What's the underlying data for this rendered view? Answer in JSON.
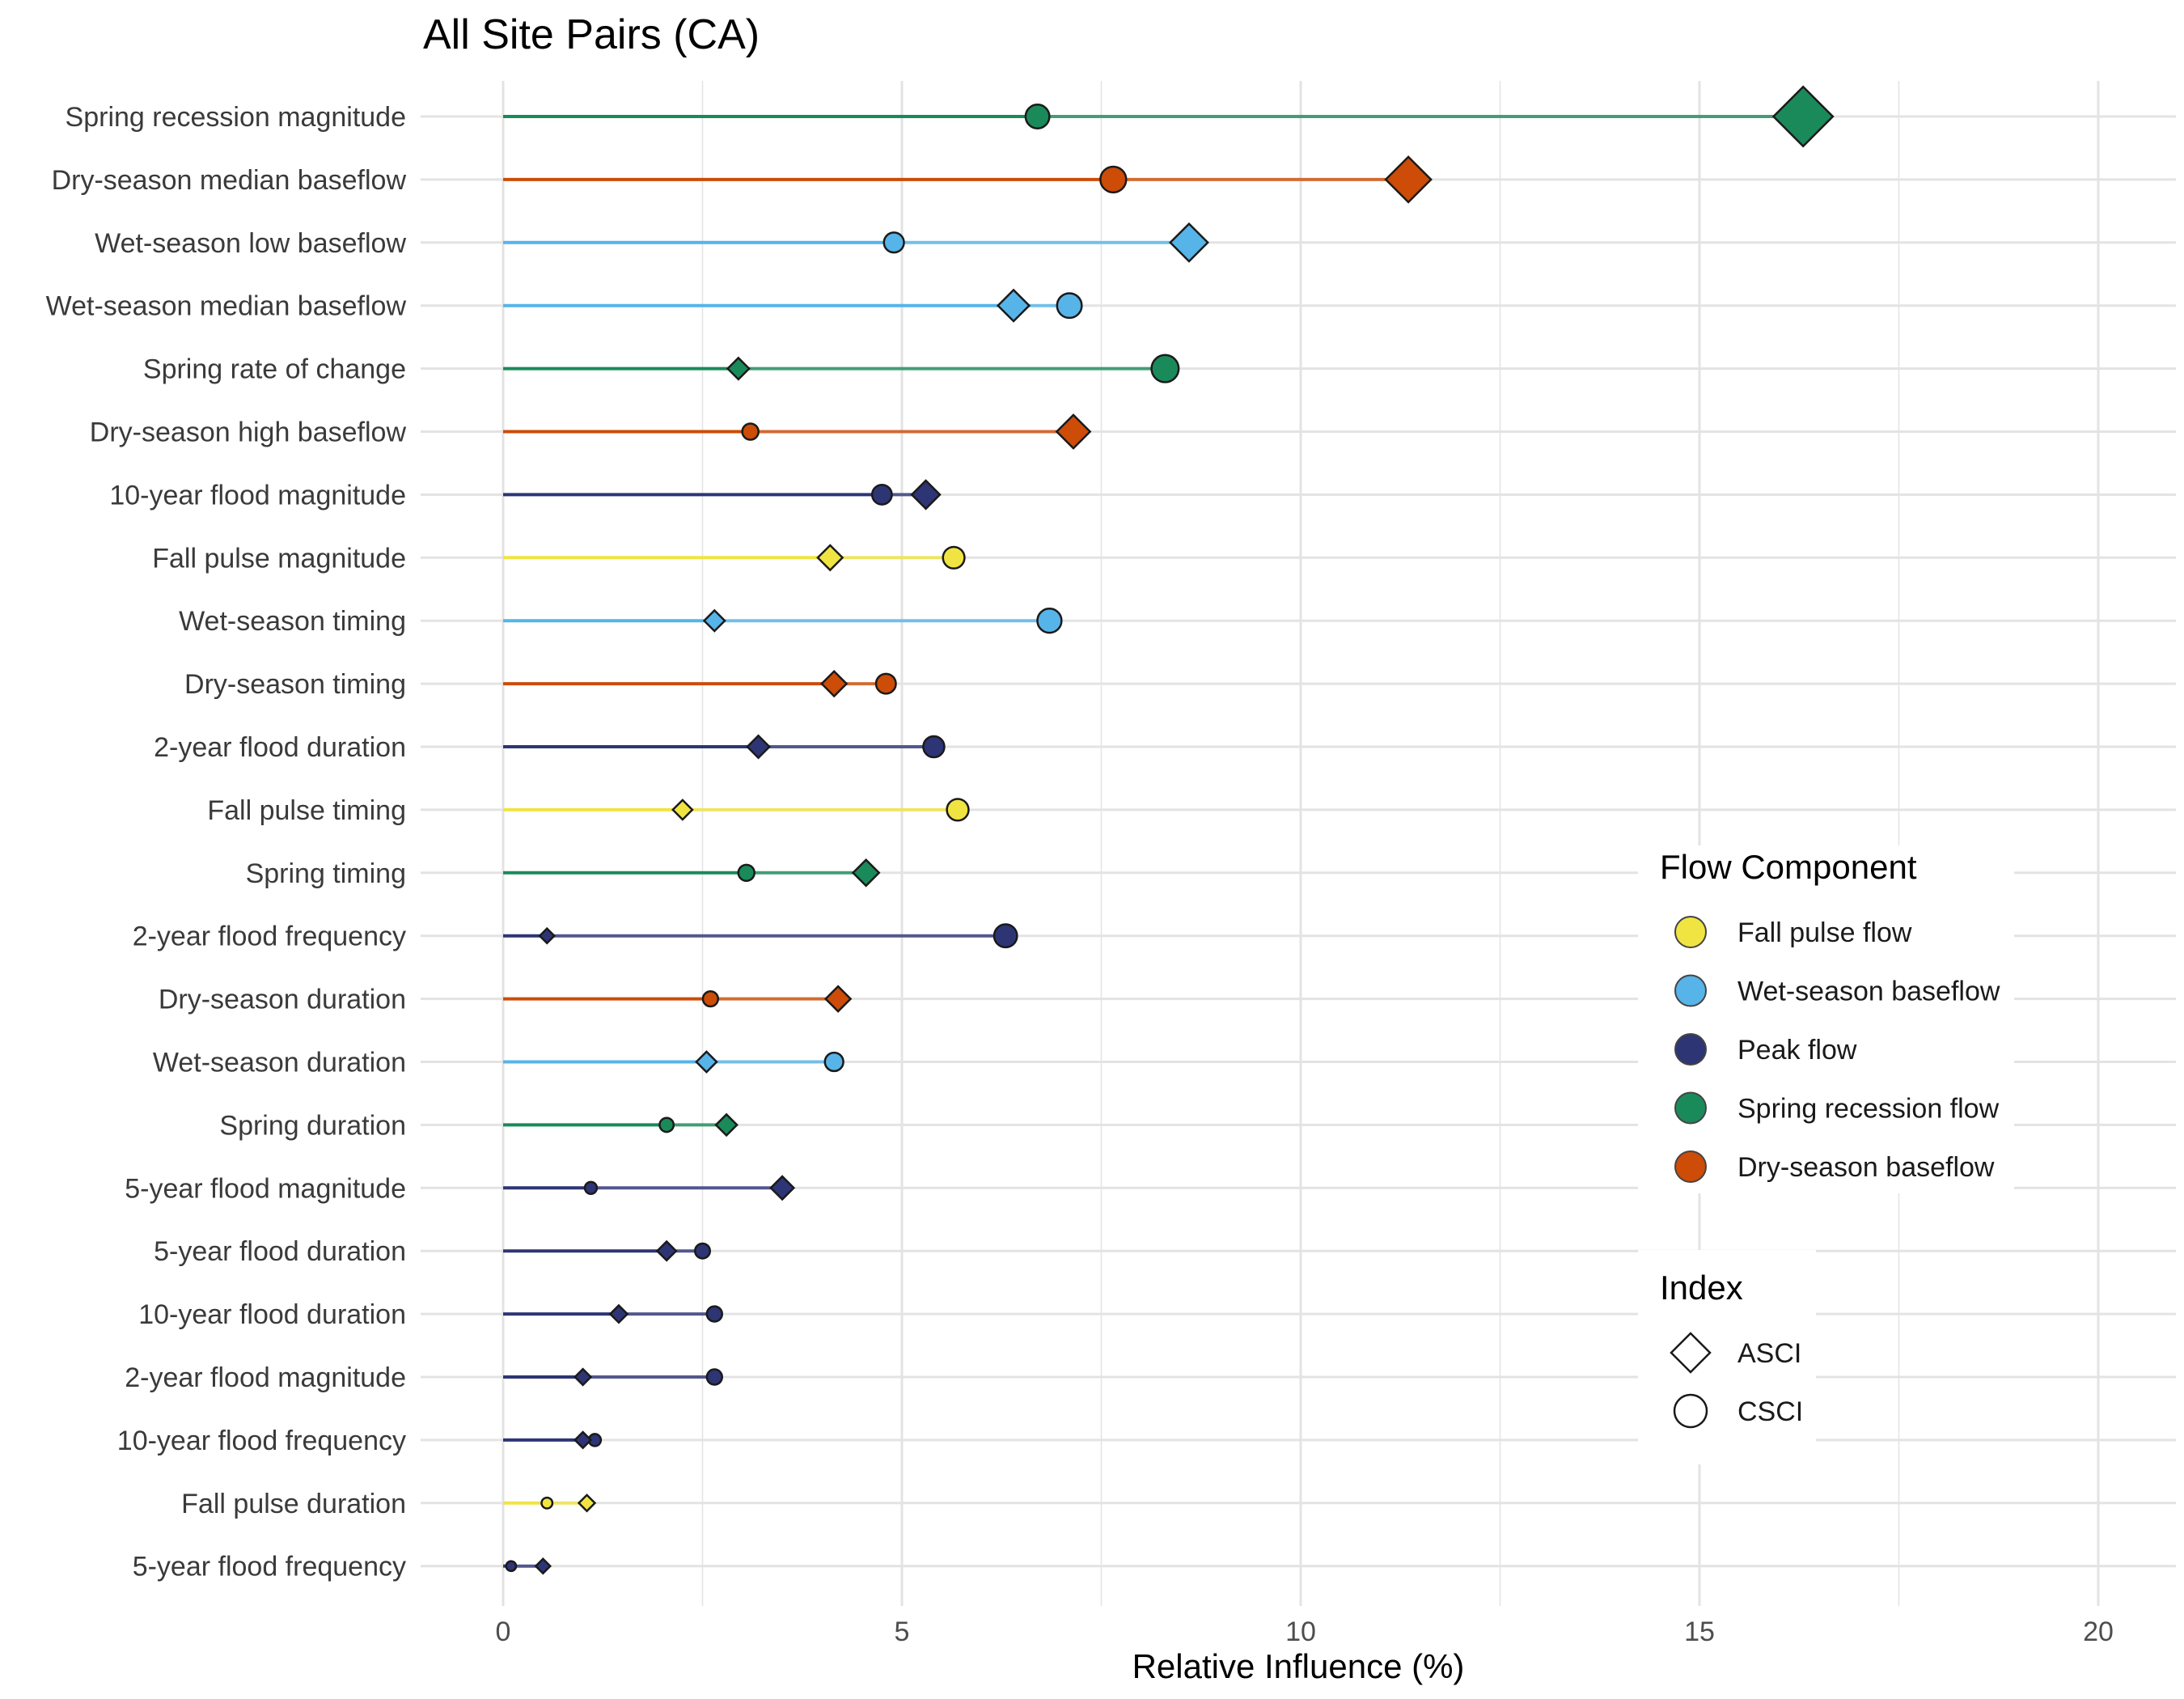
{
  "chart_data": {
    "type": "dot-plot",
    "title": "All Site Pairs (CA)",
    "xlabel": "Relative Influence (%)",
    "ylabel": "",
    "xlim": [
      0,
      20
    ],
    "x_ticks": [
      0,
      5,
      10,
      15,
      20
    ],
    "grid": true,
    "legend_placement": "right",
    "categories": [
      "Spring recession magnitude",
      "Dry-season median baseflow",
      "Wet-season low baseflow",
      "Wet-season median baseflow",
      "Spring rate of change",
      "Dry-season high baseflow",
      "10-year flood magnitude",
      "Fall pulse magnitude",
      "Wet-season timing",
      "Dry-season timing",
      "2-year flood duration",
      "Fall pulse timing",
      "Spring timing",
      "2-year flood frequency",
      "Dry-season duration",
      "Wet-season duration",
      "Spring duration",
      "5-year flood magnitude",
      "5-year flood duration",
      "10-year flood duration",
      "2-year flood magnitude",
      "10-year flood frequency",
      "Fall pulse duration",
      "5-year flood frequency"
    ],
    "flow_component": [
      "Spring recession flow",
      "Dry-season baseflow",
      "Wet-season baseflow",
      "Wet-season baseflow",
      "Spring recession flow",
      "Dry-season baseflow",
      "Peak flow",
      "Fall pulse flow",
      "Wet-season baseflow",
      "Dry-season baseflow",
      "Peak flow",
      "Fall pulse flow",
      "Spring recession flow",
      "Peak flow",
      "Dry-season baseflow",
      "Wet-season baseflow",
      "Spring recession flow",
      "Peak flow",
      "Peak flow",
      "Peak flow",
      "Peak flow",
      "Peak flow",
      "Fall pulse flow",
      "Peak flow"
    ],
    "series": [
      {
        "name": "ASCI",
        "shape": "diamond",
        "values": [
          16.3,
          11.35,
          8.6,
          6.4,
          2.95,
          7.15,
          5.3,
          4.1,
          2.65,
          4.15,
          3.2,
          2.25,
          4.55,
          0.55,
          4.2,
          2.55,
          2.8,
          3.5,
          2.05,
          1.45,
          1.0,
          1.0,
          1.05,
          0.5
        ]
      },
      {
        "name": "CSCI",
        "shape": "circle",
        "values": [
          6.7,
          7.65,
          4.9,
          7.1,
          8.3,
          3.1,
          4.75,
          5.65,
          6.85,
          4.8,
          5.4,
          5.7,
          3.05,
          6.3,
          2.6,
          4.15,
          2.05,
          1.1,
          2.5,
          2.65,
          2.65,
          1.15,
          0.55,
          0.1
        ]
      }
    ],
    "legend": {
      "flow_title": "Flow Component",
      "flow_items": [
        {
          "label": "Fall pulse flow",
          "color": "#f0e442"
        },
        {
          "label": "Wet-season baseflow",
          "color": "#56b4e9"
        },
        {
          "label": "Peak flow",
          "color": "#2d3575"
        },
        {
          "label": "Spring recession flow",
          "color": "#1a8a5a"
        },
        {
          "label": "Dry-season baseflow",
          "color": "#cc4c08"
        }
      ],
      "index_title": "Index",
      "index_items": [
        {
          "label": "ASCI",
          "shape": "diamond"
        },
        {
          "label": "CSCI",
          "shape": "circle"
        }
      ]
    },
    "colors": {
      "Fall pulse flow": "#f0e442",
      "Wet-season baseflow": "#56b4e9",
      "Peak flow": "#2d3575",
      "Spring recession flow": "#1a8a5a",
      "Dry-season baseflow": "#cc4c08"
    }
  }
}
